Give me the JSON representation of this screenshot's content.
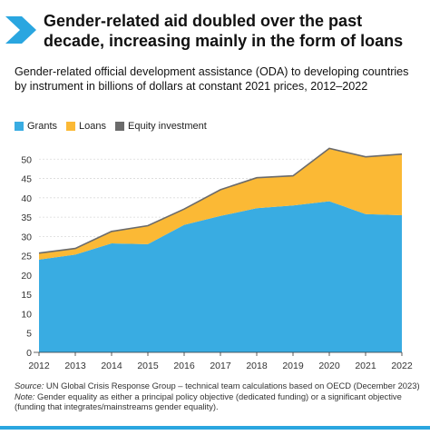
{
  "header": {
    "title": "Gender-related aid doubled over the past\ndecade, increasing mainly in the form of loans",
    "subtitle": "Gender-related official development assistance (ODA) to developing countries by instrument in billions of dollars at constant 2021 prices, 2012–2022"
  },
  "notes": {
    "source_label": "Source:",
    "source_text": " UN Global Crisis Response Group – technical team calculations based on OECD (December 2023)",
    "note_label": "Note:",
    "note_text": " Gender equality as either a principal policy objective (dedicated funding) or a significant objective (funding that integrates/mainstreams gender equality)."
  },
  "colors": {
    "grants": "#39ace2",
    "loans": "#fbb935",
    "equity": "#6b6b6b",
    "accent": "#2aa6e0"
  },
  "chart_data": {
    "type": "area",
    "stacked": true,
    "x": [
      2012,
      2013,
      2014,
      2015,
      2016,
      2017,
      2018,
      2019,
      2020,
      2021,
      2022
    ],
    "series": [
      {
        "name": "Grants",
        "values": [
          24.0,
          25.3,
          28.2,
          28.0,
          33.0,
          35.3,
          37.3,
          38.0,
          39.1,
          35.8,
          35.5
        ]
      },
      {
        "name": "Loans",
        "values": [
          1.6,
          1.5,
          3.0,
          4.7,
          4.0,
          6.7,
          7.8,
          7.6,
          13.6,
          14.7,
          15.7
        ]
      },
      {
        "name": "Equity investment",
        "values": [
          0.1,
          0.1,
          0.1,
          0.1,
          0.1,
          0.1,
          0.1,
          0.1,
          0.1,
          0.1,
          0.1
        ]
      }
    ],
    "ylim": [
      0,
      55
    ],
    "yticks": [
      0,
      5,
      10,
      15,
      20,
      25,
      30,
      35,
      40,
      45,
      50
    ],
    "grid": true,
    "legend": "top-left"
  }
}
